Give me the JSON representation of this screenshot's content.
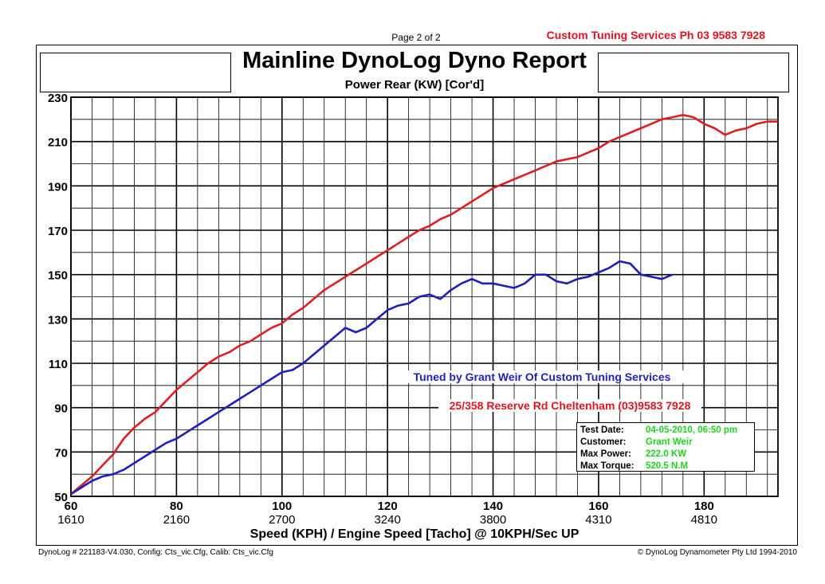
{
  "header": {
    "page_number": "Page 2 of 2",
    "company": "Custom Tuning Services  Ph 03 9583 7928",
    "title": "Mainline DynoLog Dyno Report"
  },
  "footer": {
    "config": "DynoLog # 221183-V4.030, Config: Cts_vic.Cfg, Calib: Cts_vic.Cfg",
    "copyright": "© DynoLog Dynamometer Pty Ltd 1994-2010"
  },
  "annotations": {
    "tuner": "Tuned by Grant Weir Of Custom Tuning Services",
    "address": "25/358 Reserve Rd Cheltenham (03)9583 7928"
  },
  "info_box": {
    "rows": [
      {
        "key": "Test Date:",
        "value": "04-05-2010, 06:50 pm"
      },
      {
        "key": "Customer:",
        "value": "Grant Weir"
      },
      {
        "key": "Max Power:",
        "value": "222.0 KW"
      },
      {
        "key": "Max Torque:",
        "value": "520.5 N.M"
      }
    ]
  },
  "chart_data": {
    "type": "line",
    "title": "Power Rear (KW) [Cor'd]",
    "xlabel": "Speed (KPH) / Engine Speed [Tacho] @ 10KPH/Sec UP",
    "xlim": [
      60,
      194
    ],
    "ylim": [
      50,
      230
    ],
    "y_ticks": [
      50,
      70,
      90,
      110,
      130,
      150,
      170,
      190,
      210,
      230
    ],
    "x_ticks": [
      {
        "speed": 60,
        "rpm": "1610"
      },
      {
        "speed": 80,
        "rpm": "2160"
      },
      {
        "speed": 100,
        "rpm": "2700"
      },
      {
        "speed": 120,
        "rpm": "3240"
      },
      {
        "speed": 140,
        "rpm": "3800"
      },
      {
        "speed": 160,
        "rpm": "4310"
      },
      {
        "speed": 180,
        "rpm": "4810"
      }
    ],
    "grid": true,
    "series": [
      {
        "color": "#dd1f1f",
        "points": [
          [
            60,
            51
          ],
          [
            62,
            55
          ],
          [
            64,
            59
          ],
          [
            66,
            64
          ],
          [
            68,
            69
          ],
          [
            70,
            76
          ],
          [
            72,
            81
          ],
          [
            74,
            85
          ],
          [
            76,
            88
          ],
          [
            78,
            93
          ],
          [
            80,
            98
          ],
          [
            82,
            102
          ],
          [
            84,
            106
          ],
          [
            86,
            110
          ],
          [
            88,
            113
          ],
          [
            90,
            115
          ],
          [
            92,
            118
          ],
          [
            94,
            120
          ],
          [
            96,
            123
          ],
          [
            98,
            126
          ],
          [
            100,
            128
          ],
          [
            102,
            132
          ],
          [
            104,
            135
          ],
          [
            106,
            139
          ],
          [
            108,
            143
          ],
          [
            110,
            146
          ],
          [
            112,
            149
          ],
          [
            114,
            152
          ],
          [
            116,
            155
          ],
          [
            118,
            158
          ],
          [
            120,
            161
          ],
          [
            122,
            164
          ],
          [
            124,
            167
          ],
          [
            126,
            170
          ],
          [
            128,
            172
          ],
          [
            130,
            175
          ],
          [
            132,
            177
          ],
          [
            134,
            180
          ],
          [
            136,
            183
          ],
          [
            138,
            186
          ],
          [
            140,
            189
          ],
          [
            142,
            191
          ],
          [
            144,
            193
          ],
          [
            146,
            195
          ],
          [
            148,
            197
          ],
          [
            150,
            199
          ],
          [
            152,
            201
          ],
          [
            154,
            202
          ],
          [
            156,
            203
          ],
          [
            158,
            205
          ],
          [
            160,
            207
          ],
          [
            162,
            210
          ],
          [
            164,
            212
          ],
          [
            166,
            214
          ],
          [
            168,
            216
          ],
          [
            170,
            218
          ],
          [
            172,
            220
          ],
          [
            174,
            221
          ],
          [
            176,
            222
          ],
          [
            178,
            221
          ],
          [
            180,
            218
          ],
          [
            182,
            216
          ],
          [
            184,
            213
          ],
          [
            186,
            215
          ],
          [
            188,
            216
          ],
          [
            190,
            218
          ],
          [
            192,
            219
          ],
          [
            194,
            219
          ]
        ]
      },
      {
        "color": "#1f1fbb",
        "points": [
          [
            60,
            51
          ],
          [
            62,
            54
          ],
          [
            64,
            57
          ],
          [
            66,
            59
          ],
          [
            68,
            60
          ],
          [
            70,
            62
          ],
          [
            72,
            65
          ],
          [
            74,
            68
          ],
          [
            76,
            71
          ],
          [
            78,
            74
          ],
          [
            80,
            76
          ],
          [
            82,
            79
          ],
          [
            84,
            82
          ],
          [
            86,
            85
          ],
          [
            88,
            88
          ],
          [
            90,
            91
          ],
          [
            92,
            94
          ],
          [
            94,
            97
          ],
          [
            96,
            100
          ],
          [
            98,
            103
          ],
          [
            100,
            106
          ],
          [
            102,
            107
          ],
          [
            104,
            110
          ],
          [
            106,
            114
          ],
          [
            108,
            118
          ],
          [
            110,
            122
          ],
          [
            112,
            126
          ],
          [
            114,
            124
          ],
          [
            116,
            126
          ],
          [
            118,
            130
          ],
          [
            120,
            134
          ],
          [
            122,
            136
          ],
          [
            124,
            137
          ],
          [
            126,
            140
          ],
          [
            128,
            141
          ],
          [
            130,
            139
          ],
          [
            132,
            143
          ],
          [
            134,
            146
          ],
          [
            136,
            148
          ],
          [
            138,
            146
          ],
          [
            140,
            146
          ],
          [
            142,
            145
          ],
          [
            144,
            144
          ],
          [
            146,
            146
          ],
          [
            148,
            150
          ],
          [
            150,
            150
          ],
          [
            152,
            147
          ],
          [
            154,
            146
          ],
          [
            156,
            148
          ],
          [
            158,
            149
          ],
          [
            160,
            151
          ],
          [
            162,
            153
          ],
          [
            164,
            156
          ],
          [
            166,
            155
          ],
          [
            168,
            150
          ],
          [
            170,
            149
          ],
          [
            172,
            148
          ],
          [
            174,
            150
          ]
        ]
      }
    ]
  }
}
